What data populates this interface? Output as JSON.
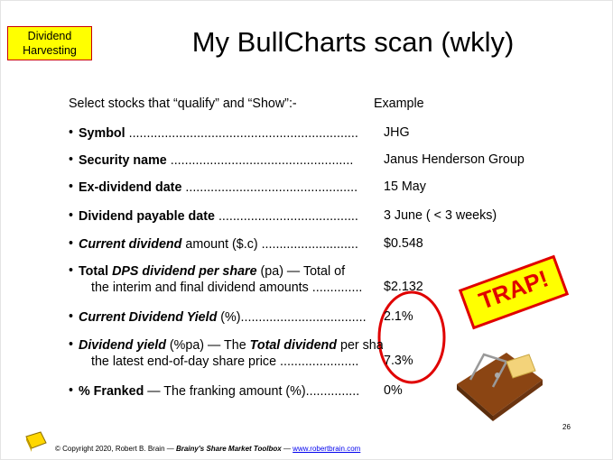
{
  "tag": [
    "Dividend",
    "Harvesting"
  ],
  "title": "My BullCharts scan (wkly)",
  "intro": "Select stocks that “qualify” and “Show”:-",
  "example_header": "Example",
  "items": [
    {
      "lines": [
        [
          {
            "text": "Symbol",
            "style": "bold"
          },
          {
            "text": "  ................................................................",
            "style": "plain"
          }
        ]
      ],
      "value": "JHG"
    },
    {
      "lines": [
        [
          {
            "text": "Security name",
            "style": "bold"
          },
          {
            "text": " ...................................................",
            "style": "plain"
          }
        ]
      ],
      "value": "Janus Henderson Group"
    },
    {
      "lines": [
        [
          {
            "text": "Ex-dividend date",
            "style": "bold"
          },
          {
            "text": " ................................................",
            "style": "plain"
          }
        ]
      ],
      "value": "15 May"
    },
    {
      "lines": [
        [
          {
            "text": "Dividend payable date",
            "style": "bold"
          },
          {
            "text": " .......................................",
            "style": "plain"
          }
        ]
      ],
      "value": "3 June ( < 3 weeks)"
    },
    {
      "lines": [
        [
          {
            "text": "Current dividend",
            "style": "bold-italic"
          },
          {
            "text": " amount ($.c) ...........................",
            "style": "plain"
          }
        ]
      ],
      "value": "$0.548"
    },
    {
      "lines": [
        [
          {
            "text": "Total ",
            "style": "bold"
          },
          {
            "text": "DPS dividend per share",
            "style": "bold-italic"
          },
          {
            "text": " (pa) — Total of",
            "style": "plain"
          }
        ],
        [
          {
            "text": "the interim and final dividend amounts ..............",
            "style": "plain"
          }
        ]
      ],
      "value": "$2.132"
    },
    {
      "lines": [
        [
          {
            "text": "Current Dividend Yield",
            "style": "bold-italic"
          },
          {
            "text": " (%)...................................",
            "style": "plain"
          }
        ]
      ],
      "value": "2.1%"
    },
    {
      "lines": [
        [
          {
            "text": "Dividend yield",
            "style": "bold-italic"
          },
          {
            "text": " (%pa) — The ",
            "style": "plain"
          },
          {
            "text": "Total dividend",
            "style": "bold-italic"
          },
          {
            "text": " per share divided by",
            "style": "plain"
          }
        ],
        [
          {
            "text": "the latest end-of-day share price ......................",
            "style": "plain"
          }
        ]
      ],
      "value": "7.3%"
    },
    {
      "lines": [
        [
          {
            "text": "% Franked",
            "style": "bold"
          },
          {
            "text": " — The franking amount (%)...............",
            "style": "plain"
          }
        ]
      ],
      "value": "0%"
    }
  ],
  "stamp": "TRAP!",
  "footer": {
    "copyright": "© Copyright 2020, Robert B. Brain — ",
    "book": "Brainy's Share Market Toolbox",
    "separator": " — ",
    "link": "www.robertbrain.com"
  },
  "page_number": "26"
}
